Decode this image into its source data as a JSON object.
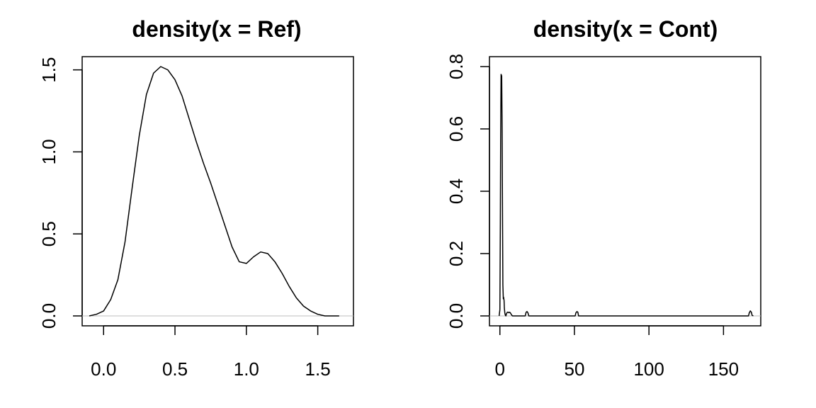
{
  "chart_data": [
    {
      "type": "line",
      "title": "density(x = Ref)",
      "xlabel": "",
      "ylabel": "",
      "xlim": [
        -0.15,
        1.75
      ],
      "ylim": [
        0,
        1.52
      ],
      "x_ticks": [
        0.0,
        0.5,
        1.0,
        1.5
      ],
      "x_tick_labels": [
        "0.0",
        "0.5",
        "1.0",
        "1.5"
      ],
      "y_ticks": [
        0.0,
        0.5,
        1.0,
        1.5
      ],
      "y_tick_labels": [
        "0.0",
        "0.5",
        "1.0",
        "1.5"
      ],
      "grid": false,
      "series": [
        {
          "x": [
            -0.1,
            -0.05,
            0.0,
            0.05,
            0.1,
            0.15,
            0.2,
            0.25,
            0.3,
            0.35,
            0.4,
            0.45,
            0.5,
            0.55,
            0.6,
            0.65,
            0.7,
            0.75,
            0.8,
            0.85,
            0.9,
            0.95,
            1.0,
            1.05,
            1.1,
            1.15,
            1.2,
            1.25,
            1.3,
            1.35,
            1.4,
            1.45,
            1.5,
            1.55,
            1.6,
            1.65
          ],
          "y": [
            0.0,
            0.01,
            0.03,
            0.1,
            0.22,
            0.45,
            0.78,
            1.1,
            1.35,
            1.48,
            1.52,
            1.5,
            1.44,
            1.34,
            1.2,
            1.06,
            0.93,
            0.81,
            0.68,
            0.55,
            0.42,
            0.33,
            0.32,
            0.36,
            0.39,
            0.38,
            0.33,
            0.26,
            0.18,
            0.11,
            0.06,
            0.03,
            0.01,
            0.0,
            0.0,
            0.0
          ]
        }
      ]
    },
    {
      "type": "line",
      "title": "density(x = Cont)",
      "xlabel": "",
      "ylabel": "",
      "xlim": [
        -7,
        175
      ],
      "ylim": [
        0,
        0.8
      ],
      "x_ticks": [
        0,
        50,
        100,
        150
      ],
      "x_tick_labels": [
        "0",
        "50",
        "100",
        "150"
      ],
      "y_ticks": [
        0.0,
        0.2,
        0.4,
        0.6,
        0.8
      ],
      "y_tick_labels": [
        "0.0",
        "0.2",
        "0.4",
        "0.6",
        "0.8"
      ],
      "grid": false,
      "series": [
        {
          "x": [
            -0.5,
            0.0,
            0.3,
            0.5,
            0.8,
            1.2,
            1.5,
            1.8,
            2.0,
            2.3,
            2.5,
            2.8,
            3.0,
            3.3,
            3.6,
            4.0,
            4.5,
            5.0,
            5.5,
            6.0,
            6.5,
            7.0,
            7.5,
            8.0,
            8.5,
            9.0,
            17.0,
            17.6,
            18.2,
            18.8,
            19.4,
            50.5,
            51.0,
            51.7,
            52.3,
            52.8,
            166.8,
            167.3,
            168.0,
            168.7,
            169.2,
            170.0
          ],
          "y": [
            0.0,
            0.02,
            0.3,
            0.56,
            0.775,
            0.77,
            0.6,
            0.28,
            0.1,
            0.055,
            0.06,
            0.05,
            0.025,
            0.01,
            0.003,
            0.0,
            0.008,
            0.012,
            0.012,
            0.01,
            0.012,
            0.01,
            0.006,
            0.002,
            0.0,
            0.0,
            0.0,
            0.012,
            0.014,
            0.01,
            0.0,
            0.0,
            0.01,
            0.014,
            0.012,
            0.0,
            0.0,
            0.01,
            0.016,
            0.012,
            0.002,
            0.0
          ]
        }
      ]
    }
  ]
}
